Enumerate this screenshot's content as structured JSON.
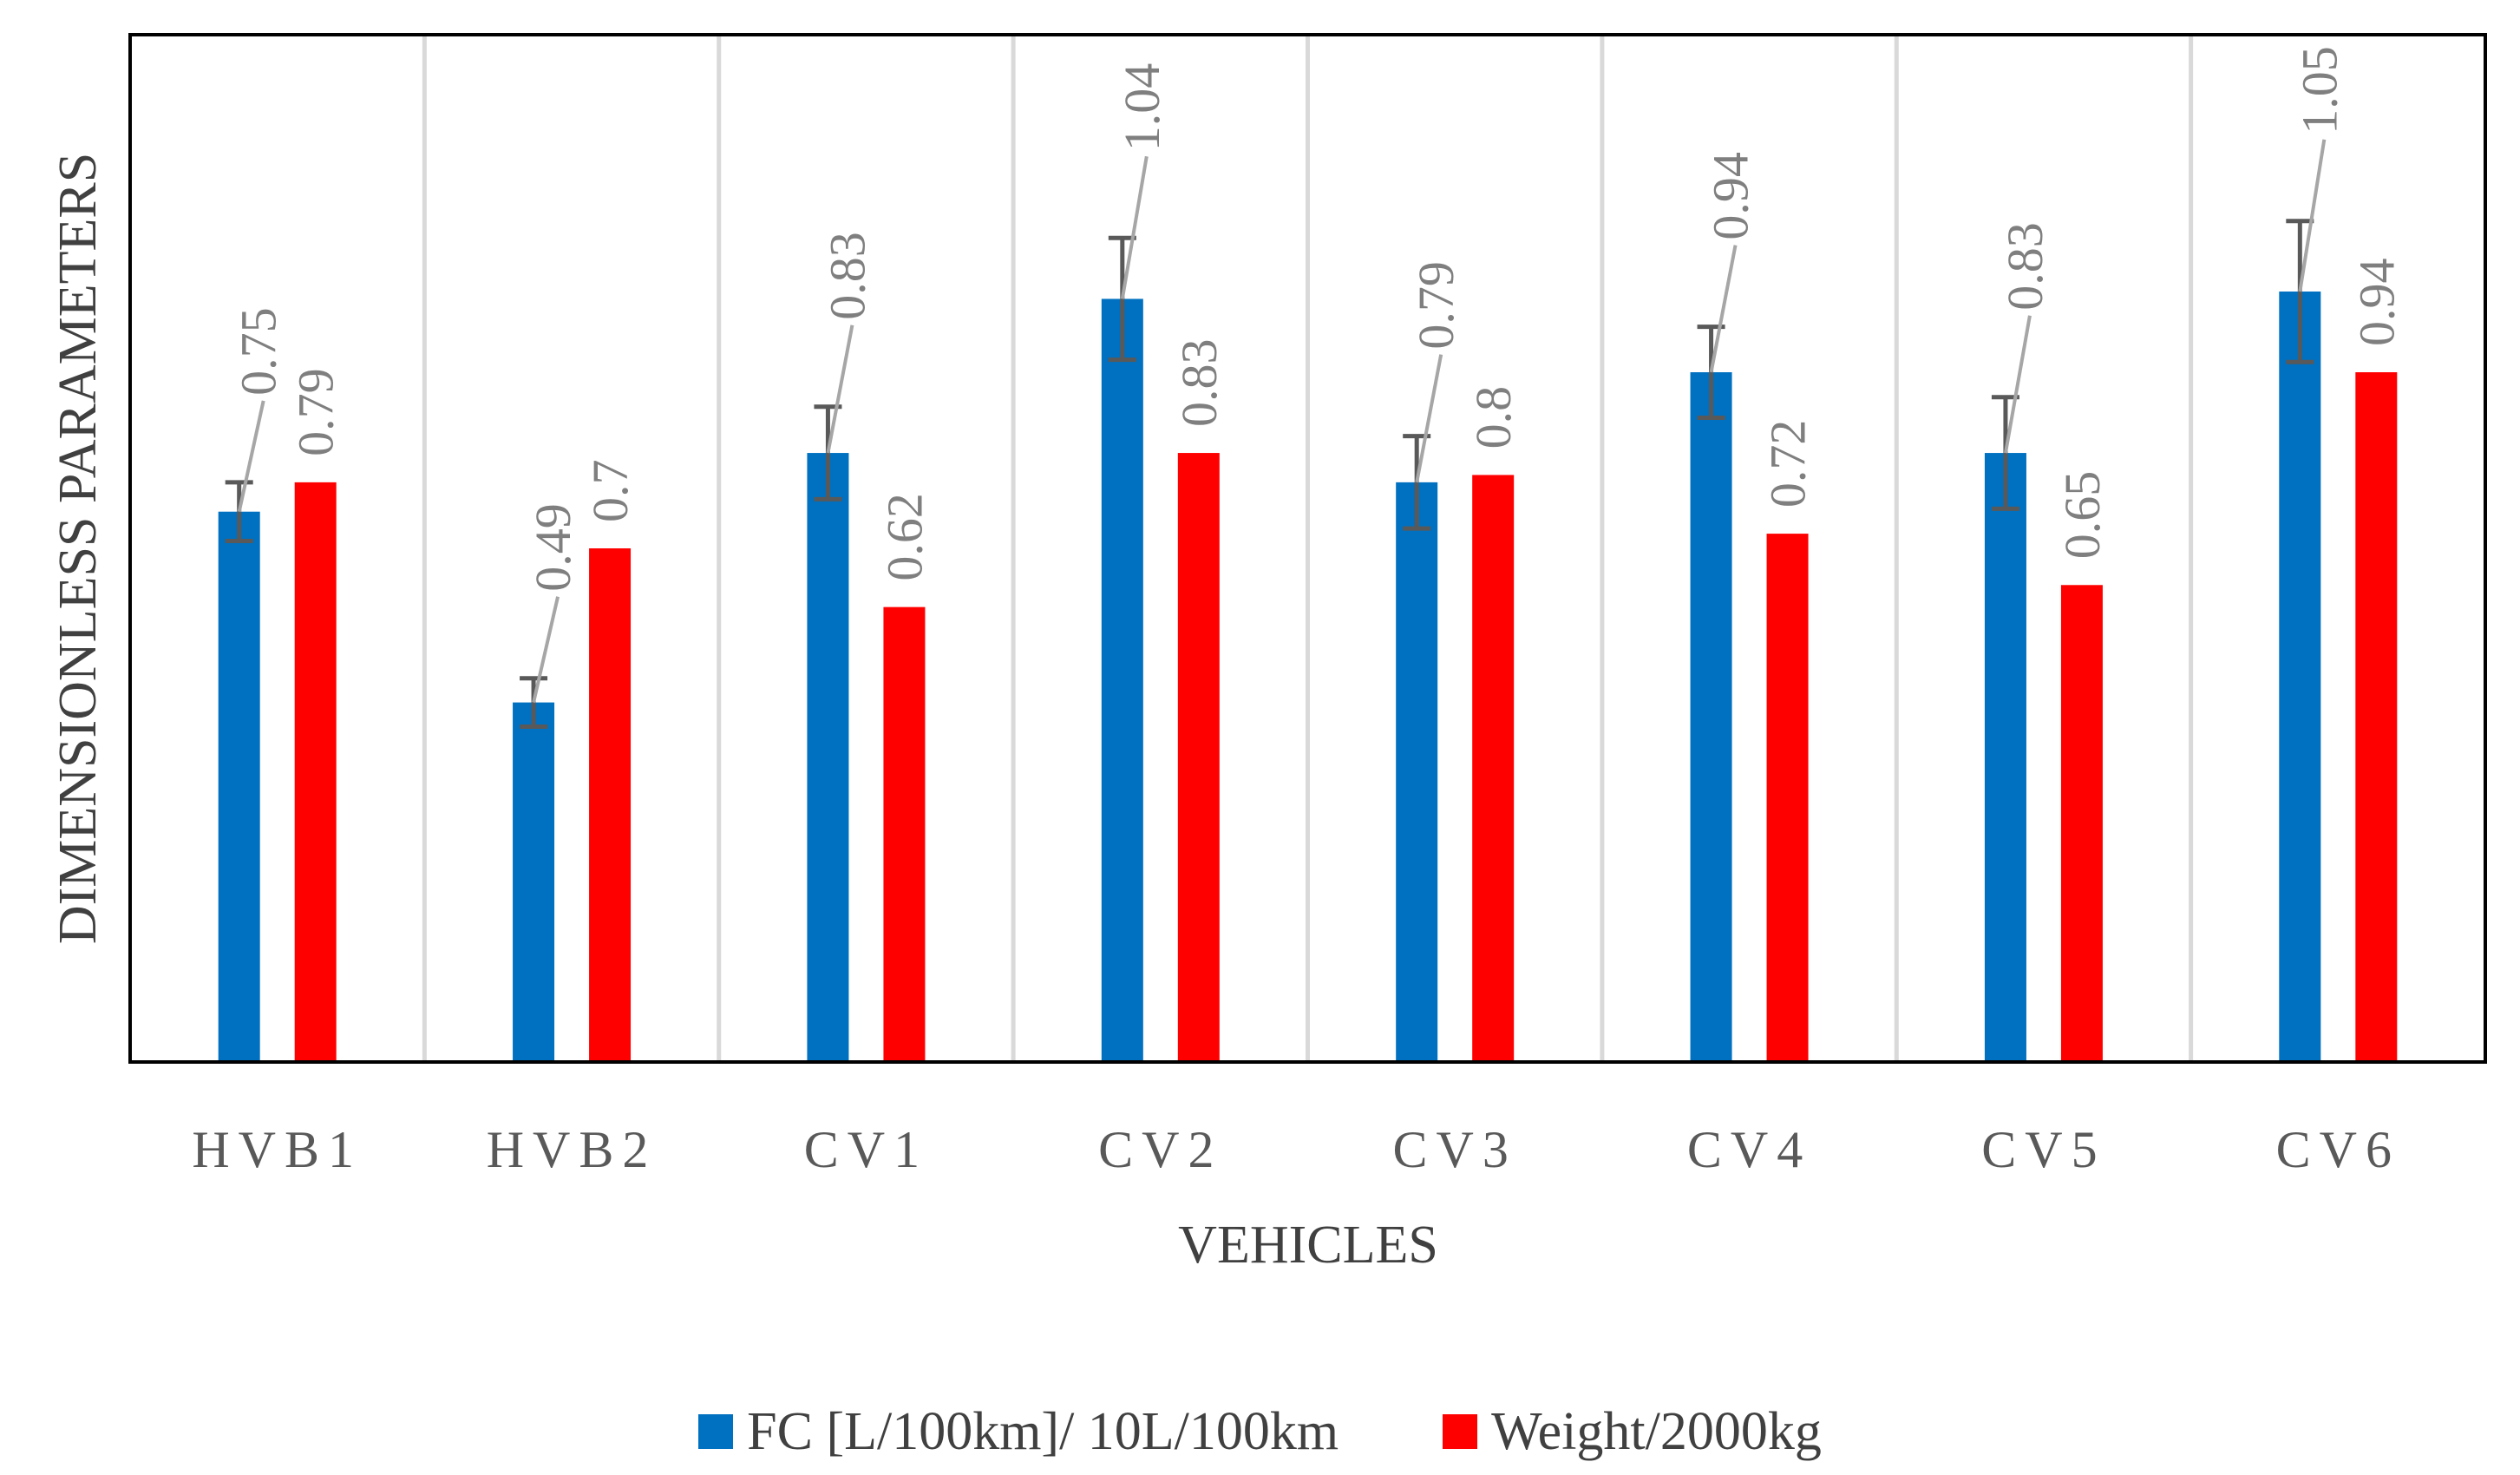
{
  "chart_data": {
    "type": "bar",
    "title": "",
    "xlabel": "VEHICLES",
    "ylabel": "DIMENSIONLESS PARAMETERS",
    "ylim": [
      0,
      1.4
    ],
    "grid": "vertical separators",
    "legend_position": "bottom",
    "categories": [
      "HVB1",
      "HVB2",
      "CV1",
      "CV2",
      "CV3",
      "CV4",
      "CV5",
      "CV6"
    ],
    "series": [
      {
        "name": "FC [L/100km]/ 10L/100km",
        "color": "#0070C0",
        "values": [
          0.75,
          0.49,
          0.83,
          1.04,
          0.79,
          0.94,
          0.83,
          1.05
        ],
        "labels": [
          "0.75",
          "0.49",
          "0.83",
          "1.04",
          "0.79",
          "0.94",
          "0.83",
          "1.05"
        ],
        "error": [
          0.04,
          0.033,
          0.063,
          0.083,
          0.063,
          0.062,
          0.076,
          0.096
        ]
      },
      {
        "name": "Weight/2000kg",
        "color": "#FF0000",
        "values": [
          0.79,
          0.7,
          0.62,
          0.83,
          0.8,
          0.72,
          0.65,
          0.94
        ],
        "labels": [
          "0.79",
          "0.7",
          "0.62",
          "0.83",
          "0.8",
          "0.72",
          "0.65",
          "0.94"
        ]
      }
    ]
  }
}
